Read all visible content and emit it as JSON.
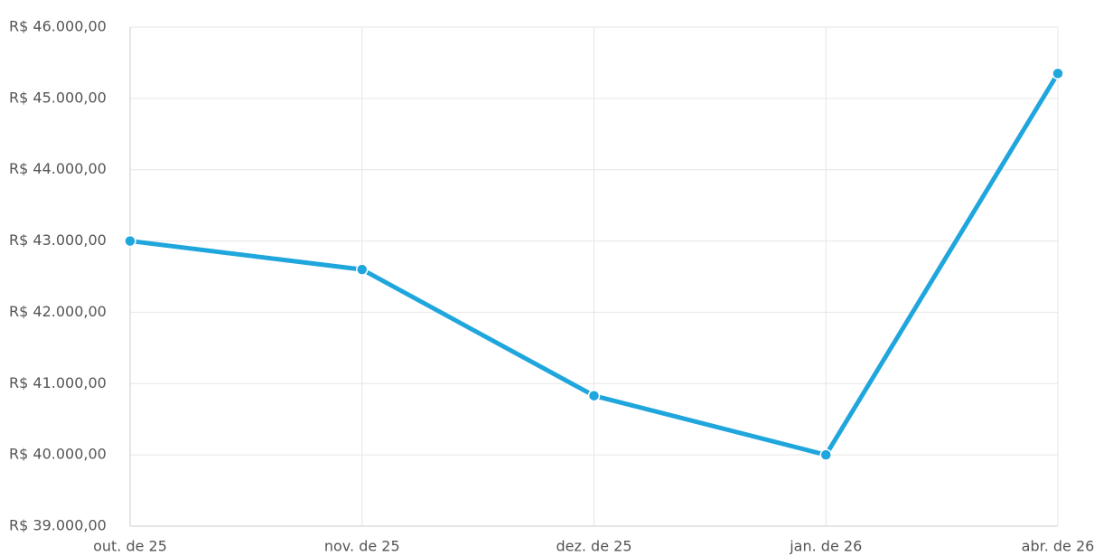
{
  "chart_data": {
    "type": "line",
    "categories": [
      "out. de 25",
      "nov. de 25",
      "dez. de 25",
      "jan. de 26",
      "abr. de 26"
    ],
    "series": [
      {
        "name": null,
        "color": "#1fa6dc",
        "values": [
          43000,
          42600,
          40830,
          40000,
          45350
        ]
      }
    ],
    "ylim": [
      39000,
      46000
    ],
    "yticks": [
      {
        "value": 39000,
        "label": "R$ 39.000,00"
      },
      {
        "value": 40000,
        "label": "R$ 40.000,00"
      },
      {
        "value": 41000,
        "label": "R$ 41.000,00"
      },
      {
        "value": 42000,
        "label": "R$ 42.000,00"
      },
      {
        "value": 43000,
        "label": "R$ 43.000,00"
      },
      {
        "value": 44000,
        "label": "R$ 44.000,00"
      },
      {
        "value": 45000,
        "label": "R$ 45.000,00"
      },
      {
        "value": 46000,
        "label": "R$ 46.000,00"
      }
    ],
    "grid": true
  }
}
